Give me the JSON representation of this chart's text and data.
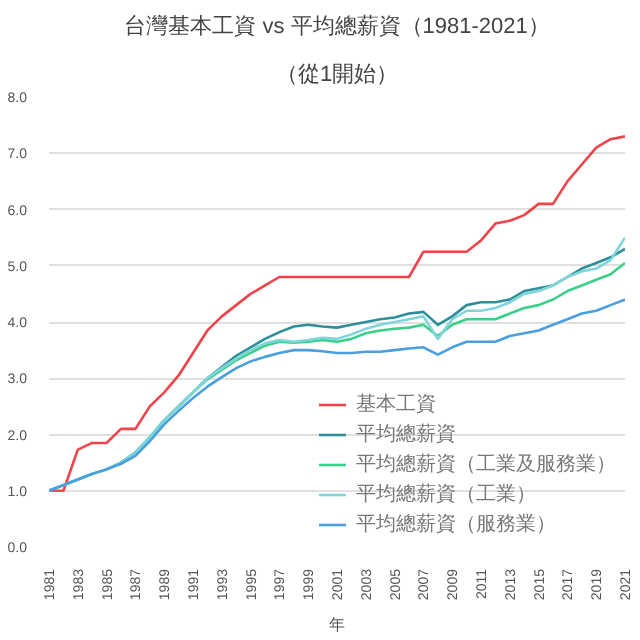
{
  "chart_data": {
    "type": "line",
    "title": "台灣基本工資 vs 平均總薪資（1981-2021）",
    "subtitle": "（從1開始）",
    "xlabel": "年",
    "x": [
      1981,
      1982,
      1983,
      1984,
      1985,
      1986,
      1987,
      1988,
      1989,
      1990,
      1991,
      1992,
      1993,
      1994,
      1995,
      1996,
      1997,
      1998,
      1999,
      2000,
      2001,
      2002,
      2003,
      2004,
      2005,
      2006,
      2007,
      2008,
      2009,
      2010,
      2011,
      2012,
      2013,
      2014,
      2015,
      2016,
      2017,
      2018,
      2019,
      2020,
      2021
    ],
    "xlim": [
      1981,
      2021
    ],
    "xticks": [
      1981,
      1983,
      1985,
      1987,
      1989,
      1991,
      1993,
      1995,
      1997,
      1999,
      2001,
      2003,
      2005,
      2007,
      2009,
      2011,
      2013,
      2015,
      2017,
      2019,
      2021
    ],
    "ylim": [
      0,
      8
    ],
    "yticks": [
      {
        "value": 0,
        "label": "0.0"
      },
      {
        "value": 1,
        "label": "1.0"
      },
      {
        "value": 2,
        "label": "2.0"
      },
      {
        "value": 3,
        "label": "3.0"
      },
      {
        "value": 4,
        "label": "4.0"
      },
      {
        "value": 5,
        "label": "5.0"
      },
      {
        "value": 6,
        "label": "6.0"
      },
      {
        "value": 7,
        "label": "7.0"
      },
      {
        "value": 8,
        "label": "8.0"
      }
    ],
    "grid": "y",
    "legend": "bottom right",
    "marker": "none",
    "line_style": "solid",
    "series": [
      {
        "name": "基本工資",
        "color": "#f0434a",
        "values": [
          1.0,
          1.0,
          1.73,
          1.85,
          1.85,
          2.1,
          2.1,
          2.5,
          2.75,
          3.05,
          3.45,
          3.85,
          4.1,
          4.3,
          4.5,
          4.65,
          4.8,
          4.8,
          4.8,
          4.8,
          4.8,
          4.8,
          4.8,
          4.8,
          4.8,
          4.8,
          5.25,
          5.25,
          5.25,
          5.25,
          5.45,
          5.75,
          5.8,
          5.9,
          6.1,
          6.1,
          6.5,
          6.8,
          7.1,
          7.25,
          7.3
        ]
      },
      {
        "name": "平均總薪資",
        "color": "#2e8f9a",
        "values": [
          1.0,
          1.1,
          1.2,
          1.3,
          1.38,
          1.5,
          1.68,
          1.95,
          2.25,
          2.5,
          2.75,
          3.0,
          3.2,
          3.4,
          3.55,
          3.7,
          3.82,
          3.92,
          3.95,
          3.92,
          3.9,
          3.95,
          4.0,
          4.05,
          4.08,
          4.15,
          4.18,
          3.95,
          4.1,
          4.3,
          4.35,
          4.35,
          4.4,
          4.55,
          4.6,
          4.65,
          4.8,
          4.95,
          5.05,
          5.15,
          5.3
        ]
      },
      {
        "name": "平均總薪資（工業及服務業）",
        "color": "#3ccf8a",
        "values": [
          1.0,
          1.1,
          1.2,
          1.3,
          1.38,
          1.5,
          1.68,
          1.95,
          2.25,
          2.5,
          2.75,
          2.98,
          3.15,
          3.32,
          3.45,
          3.58,
          3.65,
          3.63,
          3.65,
          3.68,
          3.65,
          3.7,
          3.8,
          3.85,
          3.88,
          3.9,
          3.95,
          3.75,
          3.95,
          4.05,
          4.05,
          4.05,
          4.15,
          4.25,
          4.3,
          4.4,
          4.55,
          4.65,
          4.75,
          4.85,
          5.05
        ]
      },
      {
        "name": "平均總薪資（工業）",
        "color": "#7fd6da",
        "values": [
          1.0,
          1.1,
          1.2,
          1.3,
          1.38,
          1.5,
          1.68,
          1.95,
          2.25,
          2.5,
          2.75,
          3.0,
          3.18,
          3.35,
          3.5,
          3.62,
          3.68,
          3.65,
          3.68,
          3.72,
          3.7,
          3.78,
          3.88,
          3.95,
          4.0,
          4.05,
          4.1,
          3.7,
          4.05,
          4.2,
          4.2,
          4.25,
          4.35,
          4.5,
          4.55,
          4.65,
          4.8,
          4.9,
          4.95,
          5.1,
          5.5
        ]
      },
      {
        "name": "平均總薪資（服務業）",
        "color": "#4a9fe0",
        "values": [
          1.0,
          1.1,
          1.2,
          1.3,
          1.38,
          1.48,
          1.62,
          1.88,
          2.18,
          2.42,
          2.65,
          2.85,
          3.02,
          3.18,
          3.3,
          3.38,
          3.45,
          3.5,
          3.5,
          3.48,
          3.45,
          3.45,
          3.47,
          3.47,
          3.5,
          3.53,
          3.55,
          3.42,
          3.55,
          3.65,
          3.65,
          3.65,
          3.75,
          3.8,
          3.85,
          3.95,
          4.05,
          4.15,
          4.2,
          4.3,
          4.4
        ]
      }
    ]
  }
}
